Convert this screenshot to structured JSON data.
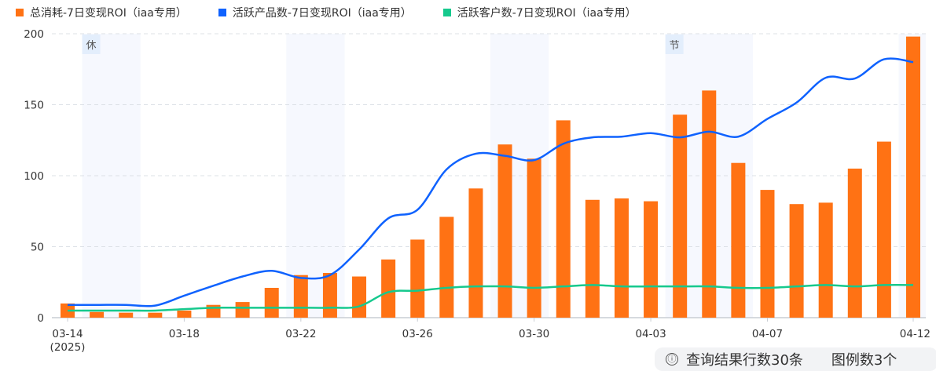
{
  "legend": [
    {
      "label": "总消耗-7日变现ROI（iaa专用）",
      "color": "#FF7214",
      "type": "bar"
    },
    {
      "label": "活跃产品数-7日变现ROI（iaa专用）",
      "color": "#0F62FE",
      "type": "line"
    },
    {
      "label": "活跃客户数-7日变现ROI（iaa专用）",
      "color": "#16C98D",
      "type": "line"
    }
  ],
  "status": {
    "info_icon": "ⓘ",
    "rows_text": "查询结果行数30条",
    "legend_count_text": "图例数3个"
  },
  "bands": [
    {
      "start": "03-15",
      "end": "03-16",
      "tag": "休"
    },
    {
      "start": "03-22",
      "end": "03-23",
      "tag": ""
    },
    {
      "start": "03-29",
      "end": "03-30",
      "tag": ""
    },
    {
      "start": "04-04",
      "end": "04-06",
      "tag": "节"
    },
    {
      "start": "04-12",
      "end": "04-12",
      "tag": ""
    }
  ],
  "chart_data": {
    "type": "bar",
    "title": "",
    "xlabel": "",
    "ylabel": "",
    "ylim": [
      0,
      200
    ],
    "yticks": [
      0,
      50,
      100,
      150,
      200
    ],
    "grid": true,
    "legend_position": "top-left",
    "x": [
      "03-14",
      "03-15",
      "03-16",
      "03-17",
      "03-18",
      "03-19",
      "03-20",
      "03-21",
      "03-22",
      "03-23",
      "03-24",
      "03-25",
      "03-26",
      "03-27",
      "03-28",
      "03-29",
      "03-30",
      "03-31",
      "04-01",
      "04-02",
      "04-03",
      "04-04",
      "04-05",
      "04-06",
      "04-07",
      "04-08",
      "04-09",
      "04-10",
      "04-11",
      "04-12"
    ],
    "xtick_labels": [
      {
        "index": 0,
        "label": "03-14",
        "sub": "(2025)"
      },
      {
        "index": 4,
        "label": "03-18"
      },
      {
        "index": 8,
        "label": "03-22"
      },
      {
        "index": 12,
        "label": "03-26"
      },
      {
        "index": 16,
        "label": "03-30"
      },
      {
        "index": 20,
        "label": "04-03"
      },
      {
        "index": 24,
        "label": "04-07"
      },
      {
        "index": 29,
        "label": "04-12"
      }
    ],
    "series": [
      {
        "name": "总消耗-7日变现ROI（iaa专用）",
        "type": "bar",
        "color": "#FF7214",
        "values": [
          10,
          4,
          3.5,
          3.5,
          5,
          9,
          11,
          21,
          30,
          31.5,
          29,
          41,
          55,
          71,
          91,
          122,
          112,
          139,
          83,
          84,
          82,
          143,
          160,
          109,
          90,
          80,
          81,
          105,
          124,
          198
        ]
      },
      {
        "name": "活跃产品数-7日变现ROI（iaa专用）",
        "type": "line",
        "color": "#0F62FE",
        "values": [
          9,
          9,
          9,
          8.5,
          15.5,
          22.5,
          29,
          33,
          28,
          30,
          48,
          70,
          76,
          104.5,
          115.5,
          114,
          111,
          122.5,
          127,
          127.5,
          130,
          127,
          131,
          127.5,
          140,
          151.5,
          169,
          168.5,
          182,
          180
        ]
      },
      {
        "name": "活跃客户数-7日变现ROI（iaa专用）",
        "type": "line",
        "color": "#16C98D",
        "values": [
          5,
          5,
          5,
          5,
          6,
          7,
          7,
          7,
          7,
          7,
          8,
          18,
          19,
          21,
          22,
          22,
          21,
          22,
          23,
          22,
          22,
          22,
          22,
          21,
          21,
          22,
          23,
          22,
          23,
          23
        ]
      }
    ]
  }
}
